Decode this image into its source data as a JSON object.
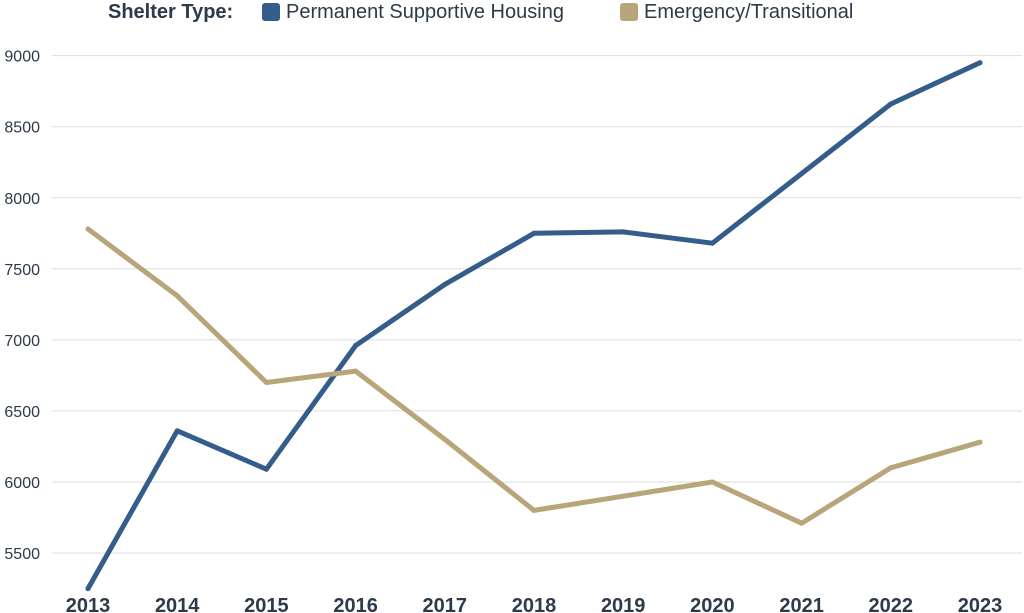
{
  "chart_data": {
    "type": "line",
    "legend_title": "Shelter Type:",
    "legend_position": "top",
    "grid": true,
    "x": [
      "2013",
      "2014",
      "2015",
      "2016",
      "2017",
      "2018",
      "2019",
      "2020",
      "2021",
      "2022",
      "2023"
    ],
    "series": [
      {
        "name": "Permanent Supportive Housing",
        "color": "#345d8b",
        "values": [
          5250,
          6360,
          6090,
          6960,
          7390,
          7750,
          7760,
          7680,
          8170,
          8660,
          8950
        ]
      },
      {
        "name": "Emergency/Transitional",
        "color": "#b8a57a",
        "values": [
          7780,
          7310,
          6700,
          6780,
          6300,
          5800,
          5900,
          6000,
          5710,
          6100,
          6280
        ]
      }
    ],
    "yticks": [
      5500,
      6000,
      6500,
      7000,
      7500,
      8000,
      8500,
      9000
    ],
    "ylim": [
      5240,
      9110
    ]
  }
}
